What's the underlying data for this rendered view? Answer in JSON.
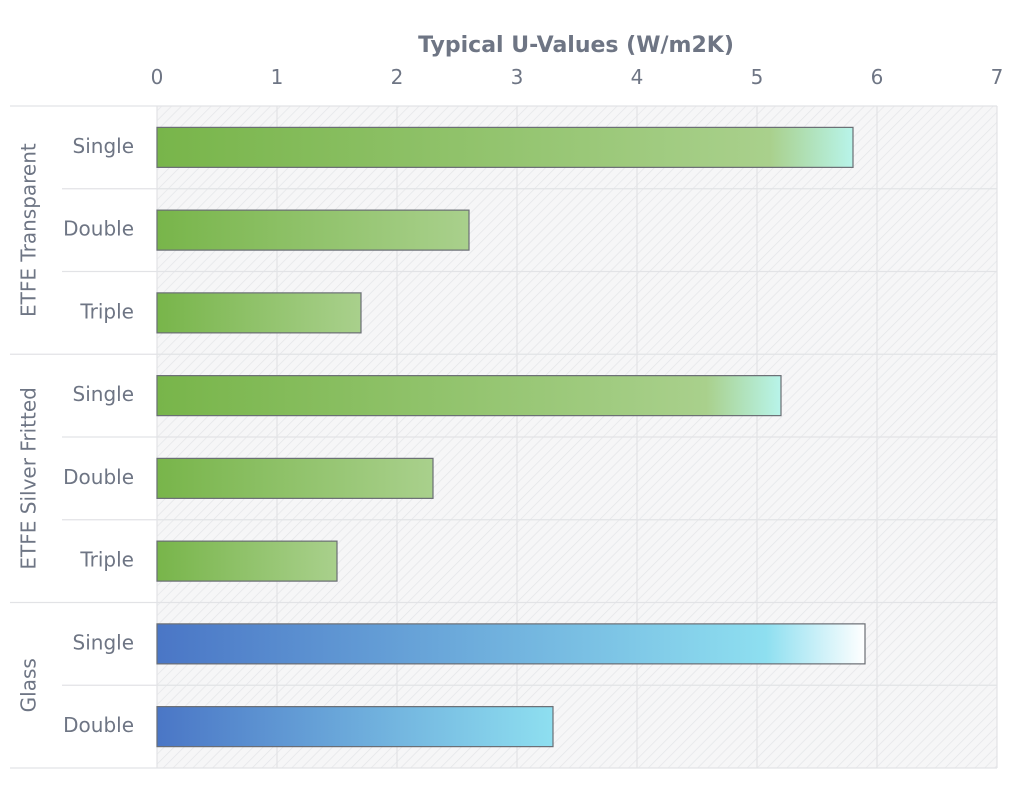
{
  "chart_data": {
    "type": "bar",
    "orientation": "horizontal",
    "title": "Typical U-Values (W/m2K)",
    "xlim": [
      0,
      7
    ],
    "ticks": [
      "0",
      "1",
      "2",
      "3",
      "4",
      "5",
      "6",
      "7"
    ],
    "grid": true,
    "axis_position": "top",
    "groups": [
      {
        "name": "ETFE Transparent",
        "color_scheme": "green",
        "bars": [
          {
            "label": "Single",
            "value": 5.8
          },
          {
            "label": "Double",
            "value": 2.6
          },
          {
            "label": "Triple",
            "value": 1.7
          }
        ]
      },
      {
        "name": "ETFE Silver Fritted",
        "color_scheme": "green",
        "bars": [
          {
            "label": "Single",
            "value": 5.2
          },
          {
            "label": "Double",
            "value": 2.3
          },
          {
            "label": "Triple",
            "value": 1.5
          }
        ]
      },
      {
        "name": "Glass",
        "color_scheme": "blue",
        "bars": [
          {
            "label": "Single",
            "value": 5.9
          },
          {
            "label": "Double",
            "value": 3.3
          }
        ]
      }
    ],
    "colors": {
      "text": "#6e7584",
      "grid": "#e2e3e6",
      "hatch_bg": "#f6f6f7",
      "hatch_line": "#e4e5e8",
      "bar_border": "#6a6e74",
      "green_start": "#78b54a",
      "green_end": "#a9d08c",
      "green_tip": "#b8f4ea",
      "blue_start": "#4a76c6",
      "blue_end": "#8edff0",
      "blue_tip": "#ffffff"
    }
  }
}
